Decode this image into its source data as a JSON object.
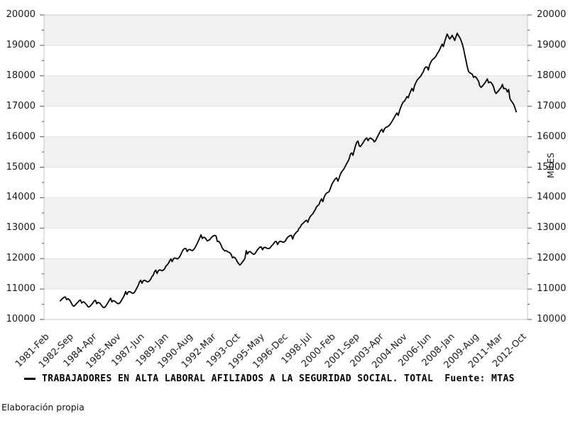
{
  "chart_data": {
    "type": "line",
    "series_label": "TRABAJADORES EN ALTA LABORAL AFILIADOS A LA SEGURIDAD SOCIAL. TOTAL",
    "source_label": "Fuente: MTAS",
    "ylabel_right": "MILES",
    "footer": "Elaboración propia",
    "legend_position": "bottom-left",
    "grid": "horizontal-bands",
    "ylim": [
      10000,
      20000
    ],
    "y_tick_step": 1000,
    "y_minor_step": 500,
    "y_tick_labels": [
      "20000",
      "19000",
      "18000",
      "17000",
      "16000",
      "15000",
      "14000",
      "13000",
      "12000",
      "11000",
      "10000"
    ],
    "x_tick_labels": [
      "1981-Feb",
      "1982-Sep",
      "1984-Apr",
      "1985-Nov",
      "1987-Jun",
      "1989-Jan",
      "1990-Aug",
      "1992-Mar",
      "1993-Oct",
      "1995-May",
      "1996-Dec",
      "1998-Jul",
      "2000-Feb",
      "2001-Sep",
      "2003-Apr",
      "2004-Nov",
      "2006-Jun",
      "2008-Jan",
      "2009-Aug",
      "2011-Mar",
      "2012-Oct"
    ],
    "x_tick_interval_months": 19,
    "x_axis_start": "1981-02",
    "x_axis_end": "2013-03",
    "data_start": "1982-03",
    "data_end": "2012-06",
    "line_color": "#000000",
    "band_color": "#f1f1f1",
    "grid_color": "#e3e3e3",
    "frame_color": "#c6c6c6",
    "tick_color": "#555555",
    "monthly_values": [
      10610,
      10660,
      10700,
      10730,
      10740,
      10650,
      10680,
      10660,
      10600,
      10520,
      10450,
      10440,
      10480,
      10530,
      10570,
      10620,
      10640,
      10540,
      10580,
      10570,
      10530,
      10480,
      10420,
      10410,
      10450,
      10500,
      10550,
      10610,
      10630,
      10520,
      10560,
      10550,
      10510,
      10450,
      10400,
      10390,
      10430,
      10490,
      10560,
      10630,
      10700,
      10580,
      10620,
      10610,
      10580,
      10540,
      10520,
      10530,
      10580,
      10650,
      10720,
      10800,
      10920,
      10820,
      10900,
      10920,
      10900,
      10870,
      10860,
      10890,
      10960,
      11040,
      11120,
      11230,
      11290,
      11190,
      11270,
      11290,
      11270,
      11240,
      11240,
      11270,
      11330,
      11410,
      11460,
      11570,
      11620,
      11510,
      11600,
      11630,
      11620,
      11600,
      11620,
      11660,
      11750,
      11790,
      11840,
      11920,
      11990,
      11900,
      11990,
      12020,
      12010,
      11990,
      12010,
      12060,
      12140,
      12230,
      12300,
      12330,
      12330,
      12230,
      12290,
      12300,
      12280,
      12260,
      12290,
      12340,
      12420,
      12500,
      12590,
      12680,
      12780,
      12660,
      12700,
      12690,
      12640,
      12580,
      12600,
      12620,
      12680,
      12720,
      12750,
      12760,
      12740,
      12560,
      12570,
      12520,
      12440,
      12340,
      12290,
      12250,
      12260,
      12230,
      12210,
      12190,
      12140,
      12030,
      12050,
      12030,
      11970,
      11890,
      11830,
      11790,
      11830,
      11890,
      11940,
      12010,
      12260,
      12150,
      12220,
      12230,
      12200,
      12160,
      12140,
      12160,
      12230,
      12290,
      12340,
      12380,
      12380,
      12290,
      12360,
      12370,
      12350,
      12330,
      12330,
      12350,
      12410,
      12450,
      12500,
      12560,
      12560,
      12460,
      12540,
      12570,
      12560,
      12540,
      12540,
      12570,
      12640,
      12700,
      12730,
      12760,
      12760,
      12640,
      12760,
      12820,
      12870,
      12900,
      12990,
      13030,
      13110,
      13150,
      13190,
      13230,
      13260,
      13190,
      13300,
      13380,
      13430,
      13470,
      13540,
      13610,
      13700,
      13740,
      13780,
      13890,
      13960,
      13870,
      14010,
      14100,
      14150,
      14170,
      14200,
      14300,
      14420,
      14500,
      14560,
      14620,
      14650,
      14540,
      14650,
      14770,
      14850,
      14900,
      14960,
      15040,
      15120,
      15190,
      15280,
      15430,
      15470,
      15390,
      15550,
      15700,
      15820,
      15860,
      15700,
      15680,
      15740,
      15800,
      15870,
      15930,
      15960,
      15870,
      15940,
      15960,
      15930,
      15900,
      15830,
      15870,
      15960,
      16040,
      16120,
      16200,
      16240,
      16150,
      16250,
      16300,
      16320,
      16340,
      16380,
      16430,
      16500,
      16570,
      16640,
      16720,
      16780,
      16700,
      16840,
      16960,
      17060,
      17140,
      17170,
      17240,
      17320,
      17280,
      17400,
      17500,
      17590,
      17500,
      17670,
      17770,
      17850,
      17900,
      17950,
      17990,
      18070,
      18130,
      18240,
      18290,
      18290,
      18190,
      18360,
      18450,
      18520,
      18550,
      18590,
      18640,
      18720,
      18780,
      18860,
      18950,
      19040,
      18960,
      19120,
      19250,
      19370,
      19290,
      19210,
      19260,
      19330,
      19250,
      19160,
      19280,
      19400,
      19320,
      19260,
      19170,
      19050,
      18900,
      18700,
      18500,
      18300,
      18150,
      18100,
      18080,
      18050,
      17950,
      17980,
      17950,
      17890,
      17820,
      17670,
      17620,
      17660,
      17710,
      17760,
      17830,
      17900,
      17770,
      17800,
      17780,
      17720,
      17630,
      17480,
      17420,
      17470,
      17510,
      17570,
      17620,
      17720,
      17580,
      17590,
      17560,
      17470,
      17550,
      17250,
      17180,
      17120,
      17060,
      16950,
      16820
    ]
  }
}
